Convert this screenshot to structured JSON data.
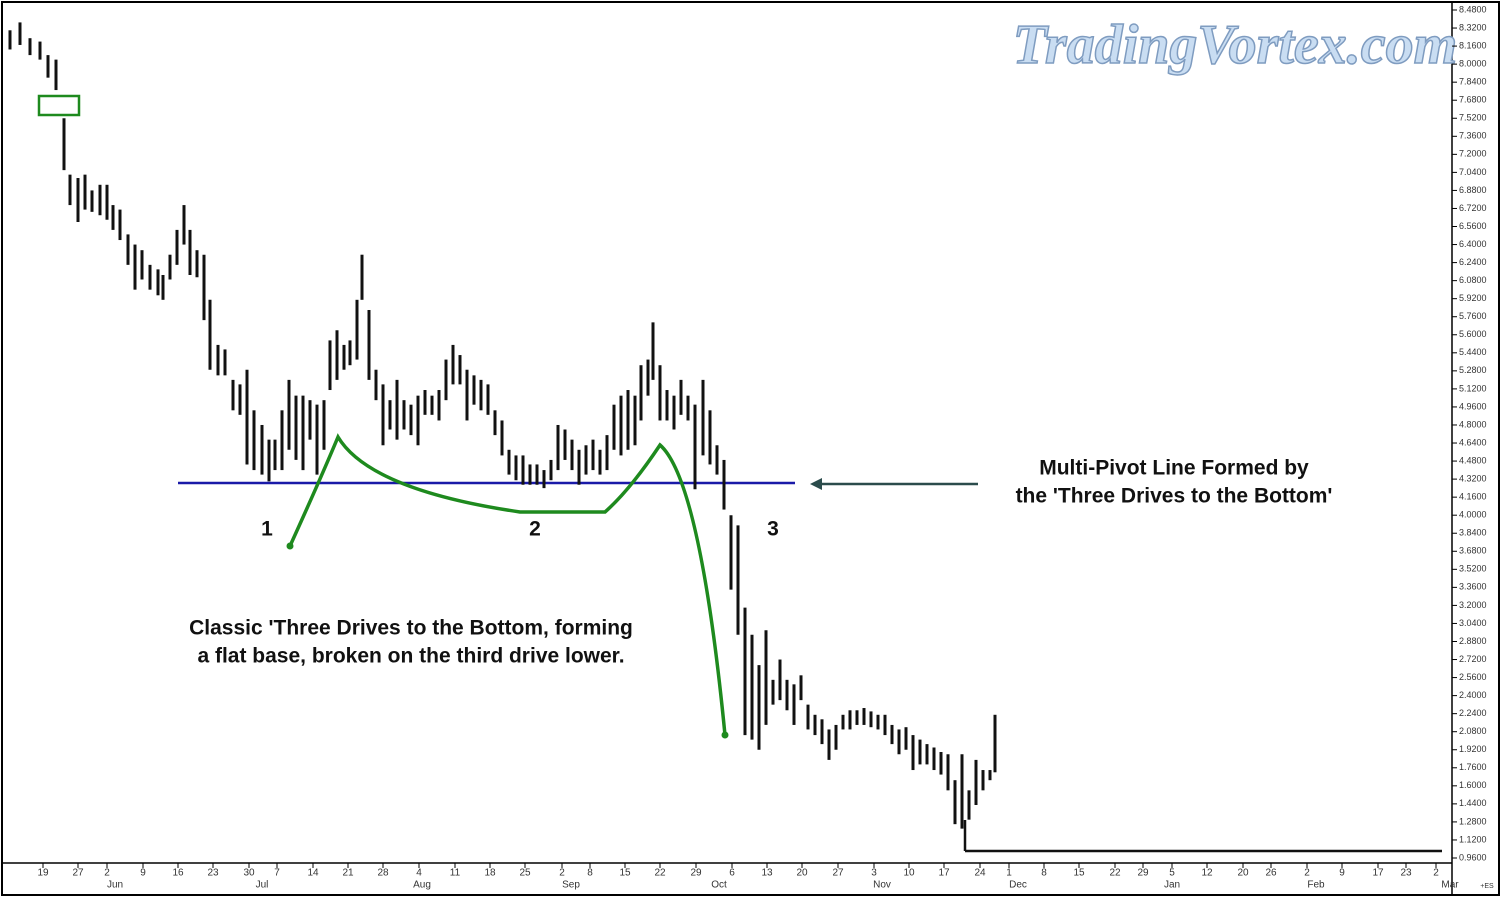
{
  "chart_data": {
    "type": "ohlc",
    "watermark": "TradingVortex.com",
    "annotations": {
      "pivot_line": [
        "Multi-Pivot Line Formed by",
        "the 'Three Drives to the Bottom'"
      ],
      "classic": [
        "Classic 'Three Drives to the Bottom, forming",
        "a flat base, broken on the third drive lower."
      ],
      "drives": [
        "1",
        "2",
        "3"
      ]
    },
    "corner_label": "+ES",
    "color": "#111111",
    "xlim": [
      0,
      289
    ],
    "ylim": [
      0.96,
      8.48
    ],
    "x": [
      1,
      3,
      5,
      7,
      8.6,
      10.2,
      11.8,
      13,
      14.6,
      16,
      17.4,
      19,
      20.4,
      21.6,
      23,
      24.6,
      26,
      27.4,
      29,
      30.6,
      31.6,
      33,
      34.4,
      35.8,
      37,
      38.4,
      39.8,
      41,
      42.6,
      44,
      45.6,
      47,
      48.4,
      49.8,
      51.4,
      52.8,
      54,
      55.4,
      56.8,
      58.2,
      59.6,
      61,
      62.4,
      63.8,
      65,
      66.4,
      67.8,
      69,
      70.4,
      71.4,
      72.8,
      74.2,
      75.6,
      77,
      78.4,
      79.8,
      81.2,
      82.6,
      84,
      85.4,
      86.8,
      88.2,
      89.6,
      91,
      92.4,
      93.8,
      95.2,
      96.6,
      98,
      99.4,
      100.8,
      102.2,
      103.6,
      105,
      106.4,
      107.8,
      109.2,
      110.6,
      112,
      113.4,
      114.8,
      116.2,
      117.6,
      119,
      120.4,
      121.8,
      123.2,
      124.6,
      126,
      127.2,
      128.6,
      129.6,
      131,
      132.4,
      133.8,
      135.2,
      136.6,
      138,
      139.6,
      141,
      142.4,
      143.8,
      145.2,
      146.6,
      148,
      149.4,
      150.8,
      152.2,
      153.6,
      155,
      156.4,
      157.8,
      159.2,
      160.6,
      162,
      163.4,
      164.8,
      166.2,
      167.6,
      169,
      170.4,
      171.8,
      173.2,
      174.6,
      176,
      177.4,
      178.8,
      180.2,
      181.6,
      183,
      184.4,
      185.8,
      187.2,
      188.6,
      190,
      191.4,
      192.8,
      194.2,
      195.6,
      197,
      198
    ],
    "high": [
      8.3,
      8.37,
      8.23,
      8.2,
      8.08,
      8.04,
      7.52,
      7.02,
      6.99,
      7.02,
      6.88,
      6.93,
      6.93,
      6.75,
      6.71,
      6.49,
      6.4,
      6.35,
      6.22,
      6.18,
      6.13,
      6.31,
      6.53,
      6.75,
      6.53,
      6.35,
      6.31,
      5.91,
      5.51,
      5.47,
      5.2,
      5.16,
      5.29,
      4.93,
      4.8,
      4.67,
      4.67,
      4.93,
      5.2,
      5.06,
      5.06,
      5.02,
      4.98,
      5.02,
      5.55,
      5.64,
      5.51,
      5.55,
      5.91,
      6.31,
      5.82,
      5.29,
      5.16,
      5.02,
      5.2,
      5.02,
      4.98,
      5.06,
      5.11,
      5.06,
      5.11,
      5.38,
      5.51,
      5.42,
      5.29,
      5.24,
      5.2,
      5.16,
      4.93,
      4.84,
      4.58,
      4.53,
      4.53,
      4.45,
      4.45,
      4.4,
      4.49,
      4.8,
      4.76,
      4.67,
      4.58,
      4.62,
      4.67,
      4.58,
      4.71,
      4.98,
      5.06,
      5.11,
      5.06,
      5.33,
      5.38,
      5.71,
      5.33,
      5.11,
      5.06,
      5.2,
      5.06,
      4.98,
      5.2,
      4.93,
      4.62,
      4.49,
      4.0,
      3.91,
      3.18,
      2.94,
      2.67,
      2.98,
      2.54,
      2.72,
      2.54,
      2.5,
      2.58,
      2.32,
      2.23,
      2.19,
      2.1,
      2.14,
      2.23,
      2.27,
      2.27,
      2.29,
      2.26,
      2.23,
      2.23,
      2.14,
      2.1,
      2.12,
      2.05,
      2.01,
      1.97,
      1.94,
      1.9,
      1.88,
      1.65,
      1.88,
      1.56,
      1.83,
      1.74,
      1.74,
      2.23
    ],
    "low": [
      8.13,
      8.17,
      8.08,
      8.04,
      7.88,
      7.77,
      7.06,
      6.75,
      6.6,
      6.71,
      6.69,
      6.66,
      6.62,
      6.53,
      6.44,
      6.22,
      6.0,
      6.09,
      6.0,
      5.95,
      5.91,
      6.09,
      6.22,
      6.4,
      6.13,
      6.11,
      5.73,
      5.29,
      5.24,
      5.24,
      4.93,
      4.89,
      4.45,
      4.4,
      4.36,
      4.3,
      4.4,
      4.4,
      4.58,
      4.49,
      4.4,
      4.67,
      4.36,
      4.58,
      5.11,
      5.2,
      5.29,
      5.33,
      5.38,
      5.91,
      5.2,
      5.02,
      4.62,
      4.76,
      4.67,
      4.76,
      4.71,
      4.62,
      4.89,
      4.89,
      4.84,
      5.02,
      5.16,
      5.16,
      4.84,
      4.98,
      4.93,
      4.89,
      4.71,
      4.53,
      4.36,
      4.31,
      4.27,
      4.27,
      4.27,
      4.24,
      4.31,
      4.4,
      4.49,
      4.4,
      4.27,
      4.36,
      4.4,
      4.36,
      4.4,
      4.58,
      4.53,
      4.58,
      4.62,
      4.84,
      5.06,
      5.2,
      4.84,
      4.84,
      4.76,
      4.89,
      4.84,
      4.23,
      4.53,
      4.45,
      4.36,
      4.05,
      3.34,
      2.94,
      2.05,
      2.01,
      1.92,
      2.14,
      2.32,
      2.36,
      2.27,
      2.14,
      2.36,
      2.1,
      2.05,
      1.97,
      1.83,
      1.92,
      2.1,
      2.1,
      2.14,
      2.14,
      2.12,
      2.1,
      2.05,
      1.97,
      1.88,
      1.92,
      1.74,
      1.79,
      1.79,
      1.74,
      1.7,
      1.56,
      1.26,
      1.22,
      1.3,
      1.43,
      1.56,
      1.65,
      1.72
    ],
    "yticks": [
      {
        "value": 8.48,
        "label": "8.4800"
      },
      {
        "value": 8.32,
        "label": "8.3200"
      },
      {
        "value": 8.16,
        "label": "8.1600"
      },
      {
        "value": 8.0,
        "label": "8.0000"
      },
      {
        "value": 7.84,
        "label": "7.8400"
      },
      {
        "value": 7.68,
        "label": "7.6800"
      },
      {
        "value": 7.52,
        "label": "7.5200"
      },
      {
        "value": 7.36,
        "label": "7.3600"
      },
      {
        "value": 7.2,
        "label": "7.2000"
      },
      {
        "value": 7.04,
        "label": "7.0400"
      },
      {
        "value": 6.88,
        "label": "6.8800"
      },
      {
        "value": 6.72,
        "label": "6.7200"
      },
      {
        "value": 6.56,
        "label": "6.5600"
      },
      {
        "value": 6.4,
        "label": "6.4000"
      },
      {
        "value": 6.24,
        "label": "6.2400"
      },
      {
        "value": 6.08,
        "label": "6.0800"
      },
      {
        "value": 5.92,
        "label": "5.9200"
      },
      {
        "value": 5.76,
        "label": "5.7600"
      },
      {
        "value": 5.6,
        "label": "5.6000"
      },
      {
        "value": 5.44,
        "label": "5.4400"
      },
      {
        "value": 5.28,
        "label": "5.2800"
      },
      {
        "value": 5.12,
        "label": "5.1200"
      },
      {
        "value": 4.96,
        "label": "4.9600"
      },
      {
        "value": 4.8,
        "label": "4.8000"
      },
      {
        "value": 4.64,
        "label": "4.6400"
      },
      {
        "value": 4.48,
        "label": "4.4800"
      },
      {
        "value": 4.32,
        "label": "4.3200"
      },
      {
        "value": 4.16,
        "label": "4.1600"
      },
      {
        "value": 4.0,
        "label": "4.0000"
      },
      {
        "value": 3.84,
        "label": "3.8400"
      },
      {
        "value": 3.68,
        "label": "3.6800"
      },
      {
        "value": 3.52,
        "label": "3.5200"
      },
      {
        "value": 3.36,
        "label": "3.3600"
      },
      {
        "value": 3.2,
        "label": "3.2000"
      },
      {
        "value": 3.04,
        "label": "3.0400"
      },
      {
        "value": 2.88,
        "label": "2.8800"
      },
      {
        "value": 2.72,
        "label": "2.7200"
      },
      {
        "value": 2.56,
        "label": "2.5600"
      },
      {
        "value": 2.4,
        "label": "2.4000"
      },
      {
        "value": 2.24,
        "label": "2.2400"
      },
      {
        "value": 2.08,
        "label": "2.0800"
      },
      {
        "value": 1.92,
        "label": "1.9200"
      },
      {
        "value": 1.76,
        "label": "1.7600"
      },
      {
        "value": 1.6,
        "label": "1.6000"
      },
      {
        "value": 1.44,
        "label": "1.4400"
      },
      {
        "value": 1.28,
        "label": "1.2800"
      },
      {
        "value": 1.12,
        "label": "1.1200"
      },
      {
        "value": 0.96,
        "label": "0.9600"
      }
    ],
    "xticks": [
      {
        "value": 7.6,
        "label": "19"
      },
      {
        "value": 14.6,
        "label": "27"
      },
      {
        "value": 20.4,
        "label": "2"
      },
      {
        "value": 27.6,
        "label": "9"
      },
      {
        "value": 34.6,
        "label": "16"
      },
      {
        "value": 41.6,
        "label": "23"
      },
      {
        "value": 48.8,
        "label": "30"
      },
      {
        "value": 54.4,
        "label": "7"
      },
      {
        "value": 61.6,
        "label": "14"
      },
      {
        "value": 68.6,
        "label": "21"
      },
      {
        "value": 75.6,
        "label": "28"
      },
      {
        "value": 82.8,
        "label": "4"
      },
      {
        "value": 90,
        "label": "11"
      },
      {
        "value": 97,
        "label": "18"
      },
      {
        "value": 104,
        "label": "25"
      },
      {
        "value": 111.4,
        "label": "2"
      },
      {
        "value": 117,
        "label": "8"
      },
      {
        "value": 124,
        "label": "15"
      },
      {
        "value": 131,
        "label": "22"
      },
      {
        "value": 138.2,
        "label": "29"
      },
      {
        "value": 145.4,
        "label": "6"
      },
      {
        "value": 152.4,
        "label": "13"
      },
      {
        "value": 159.4,
        "label": "20"
      },
      {
        "value": 166.6,
        "label": "27"
      },
      {
        "value": 173.8,
        "label": "3"
      },
      {
        "value": 180.8,
        "label": "10"
      },
      {
        "value": 187.8,
        "label": "17"
      },
      {
        "value": 195,
        "label": "24"
      },
      {
        "value": 200.8,
        "label": "1"
      },
      {
        "value": 207.8,
        "label": "8"
      },
      {
        "value": 214.8,
        "label": "15"
      },
      {
        "value": 222,
        "label": "22"
      },
      {
        "value": 227.6,
        "label": "29"
      },
      {
        "value": 233.4,
        "label": "5"
      },
      {
        "value": 240.4,
        "label": "12"
      },
      {
        "value": 247.6,
        "label": "20"
      },
      {
        "value": 253.2,
        "label": "26"
      },
      {
        "value": 260.4,
        "label": "2"
      },
      {
        "value": 267.4,
        "label": "9"
      },
      {
        "value": 274.6,
        "label": "17"
      },
      {
        "value": 280.2,
        "label": "23"
      },
      {
        "value": 286.2,
        "label": "2"
      }
    ],
    "xmonths": [
      {
        "value": 22,
        "label": "Jun"
      },
      {
        "value": 51.4,
        "label": "Jul"
      },
      {
        "value": 83.4,
        "label": "Aug"
      },
      {
        "value": 113.2,
        "label": "Sep"
      },
      {
        "value": 142.8,
        "label": "Oct"
      },
      {
        "value": 175.4,
        "label": "Nov"
      },
      {
        "value": 202.6,
        "label": "Dec"
      },
      {
        "value": 233.4,
        "label": "Jan"
      },
      {
        "value": 262.2,
        "label": "Feb"
      },
      {
        "value": 289,
        "label": "Mar"
      }
    ]
  }
}
